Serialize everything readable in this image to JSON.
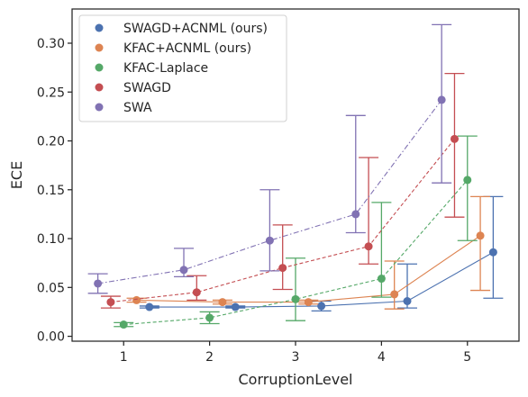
{
  "chart_data": {
    "type": "line",
    "xlabel": "CorruptionLevel",
    "ylabel": "ECE",
    "xlim": [
      0.4,
      5.6
    ],
    "ylim": [
      -0.005,
      0.335
    ],
    "x_ticks": [
      1,
      2,
      3,
      4,
      5
    ],
    "y_ticks": [
      0.0,
      0.05,
      0.1,
      0.15,
      0.2,
      0.25,
      0.3
    ],
    "y_tick_labels": [
      "0.00",
      "0.05",
      "0.10",
      "0.15",
      "0.20",
      "0.25",
      "0.30"
    ],
    "grid": false,
    "legend_position": "top-left",
    "series": [
      {
        "name": "SWAGD+ACNML (ours)",
        "color": "#4c72b0",
        "dash": "solid",
        "x": [
          1,
          2,
          3,
          4,
          5
        ],
        "y": [
          0.03,
          0.03,
          0.031,
          0.036,
          0.086
        ],
        "err_low": [
          0.029,
          0.029,
          0.026,
          0.029,
          0.039
        ],
        "err_high": [
          0.031,
          0.031,
          0.036,
          0.074,
          0.143
        ]
      },
      {
        "name": "KFAC+ACNML (ours)",
        "color": "#dd8452",
        "dash": "solid",
        "x": [
          1,
          2,
          3,
          4,
          5
        ],
        "y": [
          0.037,
          0.035,
          0.035,
          0.043,
          0.103
        ],
        "err_low": [
          0.035,
          0.033,
          0.033,
          0.028,
          0.047
        ],
        "err_high": [
          0.039,
          0.037,
          0.037,
          0.077,
          0.143
        ]
      },
      {
        "name": "KFAC-Laplace",
        "color": "#55a868",
        "dash": "dashed",
        "x": [
          1,
          2,
          3,
          4,
          5
        ],
        "y": [
          0.012,
          0.019,
          0.038,
          0.059,
          0.16
        ],
        "err_low": [
          0.01,
          0.013,
          0.016,
          0.04,
          0.098
        ],
        "err_high": [
          0.014,
          0.025,
          0.08,
          0.137,
          0.205
        ]
      },
      {
        "name": "SWAGD",
        "color": "#c44e52",
        "dash": "dashed",
        "x": [
          1,
          2,
          3,
          4,
          5
        ],
        "y": [
          0.035,
          0.045,
          0.07,
          0.092,
          0.202
        ],
        "err_low": [
          0.029,
          0.037,
          0.048,
          0.074,
          0.122
        ],
        "err_high": [
          0.041,
          0.062,
          0.114,
          0.183,
          0.269
        ]
      },
      {
        "name": "SWA",
        "color": "#8172b3",
        "dash": "dashdot",
        "x": [
          1,
          2,
          3,
          4,
          5
        ],
        "y": [
          0.054,
          0.068,
          0.098,
          0.125,
          0.242
        ],
        "err_low": [
          0.044,
          0.061,
          0.067,
          0.106,
          0.157
        ],
        "err_high": [
          0.064,
          0.09,
          0.15,
          0.226,
          0.319
        ]
      }
    ]
  }
}
